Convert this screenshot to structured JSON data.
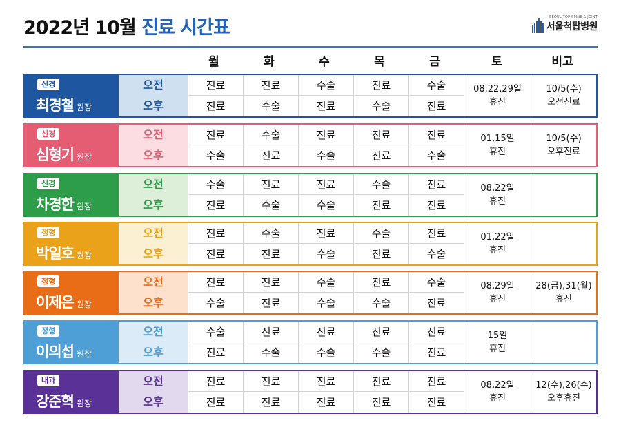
{
  "title": {
    "prefix": "2022년 10월",
    "accent": "진료 시간표"
  },
  "logo": {
    "en": "SEOUL TOP SPINE & JOINT",
    "ko": "서울척탑병원"
  },
  "columns": [
    "월",
    "화",
    "수",
    "목",
    "금",
    "토",
    "비고"
  ],
  "doctors": [
    {
      "dept": "신경",
      "name": "최경철",
      "title": "원장",
      "am_label": "오전",
      "pm_label": "오후",
      "am": [
        "진료",
        "진료",
        "수술",
        "진료",
        "수술"
      ],
      "pm": [
        "진료",
        "수술",
        "진료",
        "수술",
        "진료"
      ],
      "sat1": "08,22,29일",
      "sat2": "휴진",
      "note1": "10/5(수)",
      "note2": "오전진료",
      "color": "#1f56a0",
      "light": "#cfe0f0"
    },
    {
      "dept": "신경",
      "name": "심형기",
      "title": "원장",
      "am_label": "오전",
      "pm_label": "오후",
      "am": [
        "진료",
        "수술",
        "진료",
        "진료",
        "진료"
      ],
      "pm": [
        "수술",
        "진료",
        "수술",
        "진료",
        "수술"
      ],
      "sat1": "01,15일",
      "sat2": "휴진",
      "note1": "10/5(수)",
      "note2": "오후진료",
      "color": "#e45d72",
      "light": "#fbdde2"
    },
    {
      "dept": "신경",
      "name": "차경한",
      "title": "원장",
      "am_label": "오전",
      "pm_label": "오후",
      "am": [
        "수술",
        "진료",
        "진료",
        "수술",
        "진료"
      ],
      "pm": [
        "진료",
        "수술",
        "수술",
        "진료",
        "진료"
      ],
      "sat1": "08,22일",
      "sat2": "휴진",
      "note1": "",
      "note2": "",
      "color": "#2e9d4a",
      "light": "#ddefd8"
    },
    {
      "dept": "정형",
      "name": "박일호",
      "title": "원장",
      "am_label": "오전",
      "pm_label": "오후",
      "am": [
        "진료",
        "수술",
        "진료",
        "수술",
        "진료"
      ],
      "pm": [
        "진료",
        "진료",
        "수술",
        "진료",
        "수술"
      ],
      "sat1": "01,22일",
      "sat2": "휴진",
      "note1": "",
      "note2": "",
      "color": "#eaa21b",
      "light": "#fcf0d2"
    },
    {
      "dept": "정형",
      "name": "이제은",
      "title": "원장",
      "am_label": "오전",
      "pm_label": "오후",
      "am": [
        "진료",
        "진료",
        "수술",
        "진료",
        "수술"
      ],
      "pm": [
        "수술",
        "진료",
        "수술",
        "수술",
        "진료"
      ],
      "sat1": "08,29일",
      "sat2": "휴진",
      "note1": "28(금),31(월)",
      "note2": "휴진",
      "color": "#e96d17",
      "light": "#fde1cc"
    },
    {
      "dept": "정형",
      "name": "이의섭",
      "title": "원장",
      "am_label": "오전",
      "pm_label": "오후",
      "am": [
        "수술",
        "진료",
        "진료",
        "진료",
        "진료"
      ],
      "pm": [
        "진료",
        "수술",
        "수술",
        "수술",
        "진료"
      ],
      "sat1": "15일",
      "sat2": "휴진",
      "note1": "",
      "note2": "",
      "color": "#4e9fd6",
      "light": "#dbecf8"
    },
    {
      "dept": "내과",
      "name": "강준혁",
      "title": "원장",
      "am_label": "오전",
      "pm_label": "오후",
      "am": [
        "진료",
        "진료",
        "진료",
        "진료",
        "진료"
      ],
      "pm": [
        "진료",
        "진료",
        "진료",
        "진료",
        "진료"
      ],
      "sat1": "08,22일",
      "sat2": "휴진",
      "note1": "12(수),26(수)",
      "note2": "오후휴진",
      "color": "#5a3196",
      "light": "#e2d9ee"
    }
  ]
}
